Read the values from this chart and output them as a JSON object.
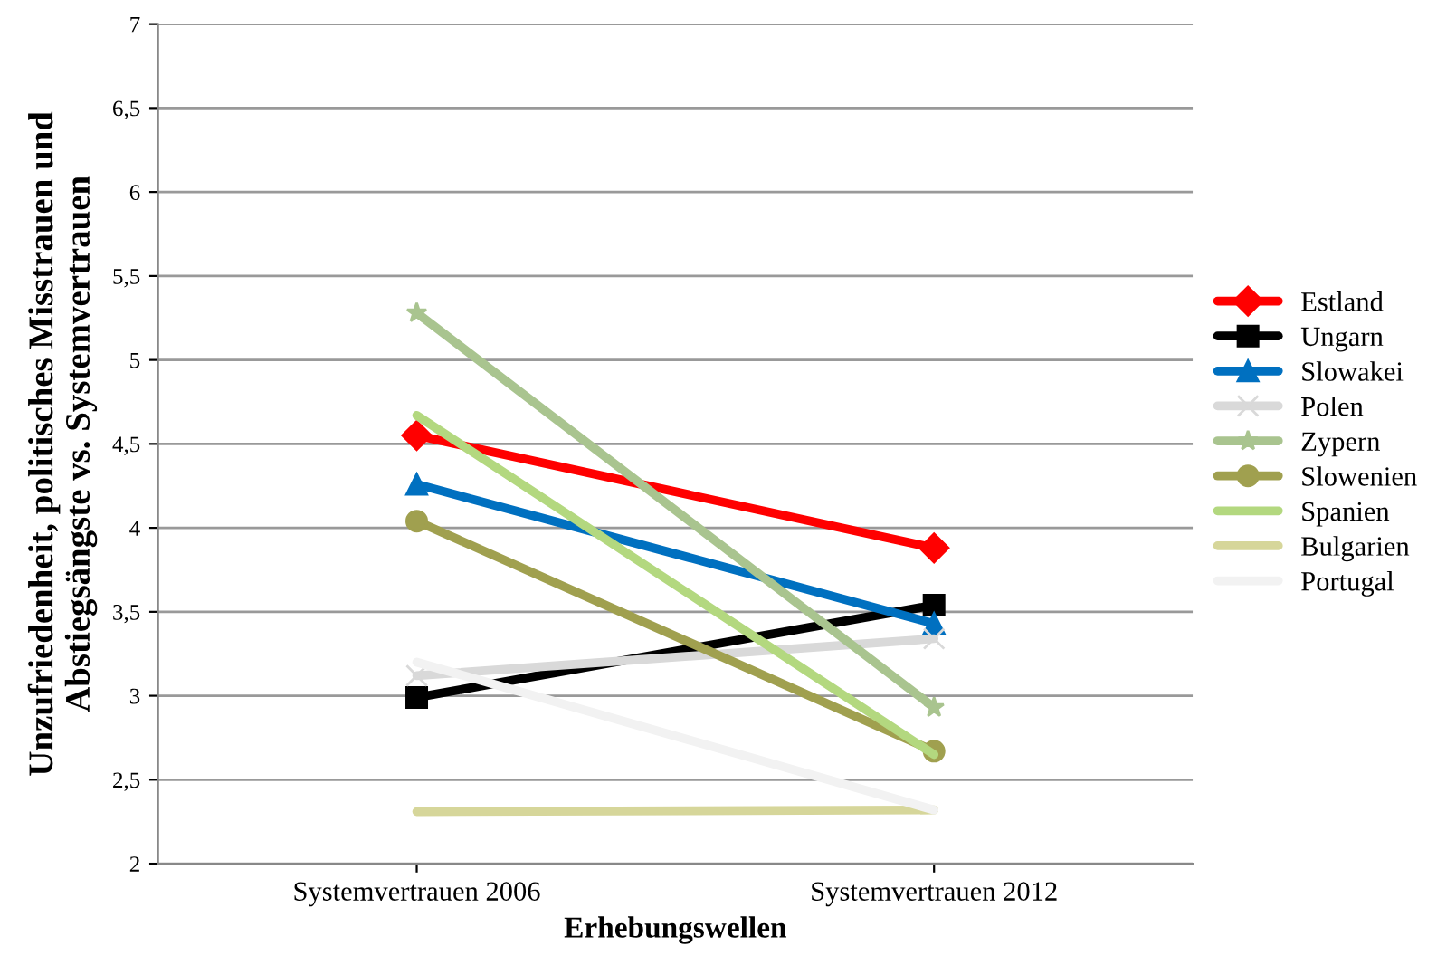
{
  "chart_data": {
    "type": "line",
    "xlabel": "Erhebungswellen",
    "ylabel": "Unzufriedenheit, politisches Misstrauen und\nAbstiegsängste vs. Systemvertrauen",
    "categories": [
      "Systemvertrauen 2006",
      "Systemvertrauen 2012"
    ],
    "ylim": [
      2,
      7
    ],
    "yticks": [
      2,
      {
        "value": 2.5,
        "label": "2,5"
      },
      3,
      {
        "value": 3.5,
        "label": "3,5"
      },
      4,
      {
        "value": 4.5,
        "label": "4,5"
      },
      5,
      {
        "value": 5.5,
        "label": "5,5"
      },
      6,
      {
        "value": 6.5,
        "label": "6,5"
      },
      7
    ],
    "grid": "y",
    "legend": "right",
    "series": [
      {
        "name": "Estland",
        "color": "#ff0000",
        "marker": "diamond",
        "values": [
          4.55,
          3.88
        ]
      },
      {
        "name": "Ungarn",
        "color": "#000000",
        "marker": "square",
        "values": [
          2.99,
          3.54
        ]
      },
      {
        "name": "Slowakei",
        "color": "#0070c0",
        "marker": "triangle",
        "values": [
          4.26,
          3.43
        ]
      },
      {
        "name": "Polen",
        "color": "#d9d9d9",
        "marker": "cross",
        "values": [
          3.12,
          3.34
        ]
      },
      {
        "name": "Zypern",
        "color": "#a9c48f",
        "marker": "star",
        "values": [
          5.28,
          2.93
        ]
      },
      {
        "name": "Slowenien",
        "color": "#a0a04f",
        "marker": "circle",
        "values": [
          4.04,
          2.67
        ]
      },
      {
        "name": "Spanien",
        "color": "#b3d87f",
        "marker": "none",
        "values": [
          4.67,
          2.65
        ]
      },
      {
        "name": "Bulgarien",
        "color": "#d6d69a",
        "marker": "none",
        "values": [
          2.31,
          2.32
        ]
      },
      {
        "name": "Portugal",
        "color": "#f2f2f2",
        "marker": "none",
        "values": [
          3.2,
          2.32
        ]
      }
    ]
  }
}
